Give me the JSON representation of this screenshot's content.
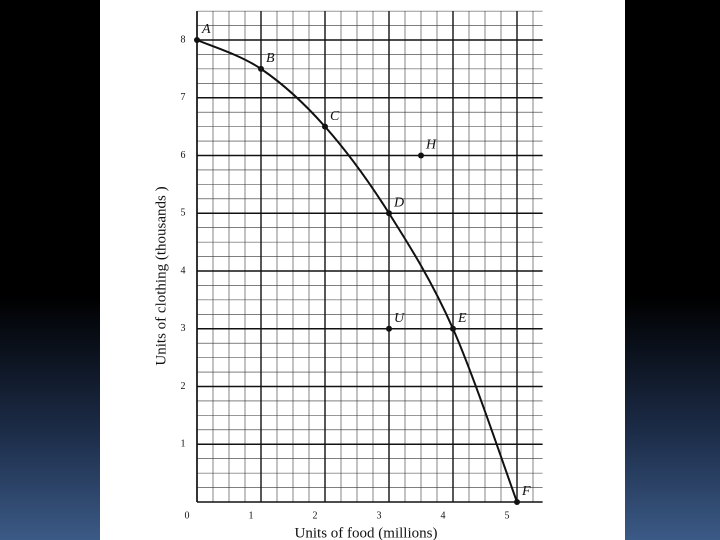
{
  "chart_data": {
    "type": "line",
    "xlabel": "Units of food (millions)",
    "ylabel": "Units of clothing (thousands )",
    "xlim": [
      0,
      5.4
    ],
    "ylim": [
      0,
      8.5
    ],
    "xticks": [
      0,
      1,
      2,
      3,
      4,
      5
    ],
    "yticks": [
      1,
      2,
      3,
      4,
      5,
      6,
      7,
      8
    ],
    "grid": true,
    "color": "#111111",
    "curve": {
      "labels": [
        "A",
        "B",
        "C",
        "D",
        "E",
        "F"
      ],
      "x": [
        0,
        1,
        2,
        3,
        4,
        5
      ],
      "y": [
        8,
        7.5,
        6.5,
        5,
        3,
        0
      ]
    },
    "points": {
      "labels": [
        "H",
        "U"
      ],
      "x": [
        3.5,
        3
      ],
      "y": [
        6,
        3
      ]
    }
  }
}
